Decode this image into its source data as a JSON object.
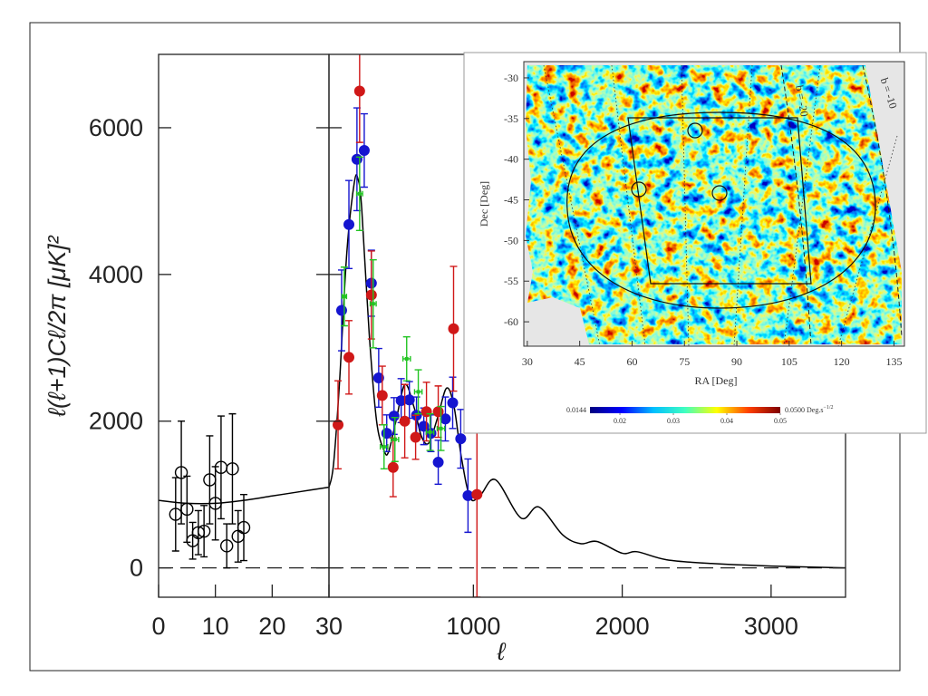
{
  "chart_data": [
    {
      "type": "scatter",
      "y_label": "ℓ(ℓ+1)Cℓ/2π  [μK]²",
      "xlim": [
        0,
        30
      ],
      "xticks": [
        0,
        10,
        20,
        30
      ],
      "ylim": [
        -400,
        7000
      ],
      "yticks": [
        0,
        2000,
        4000,
        6000
      ],
      "zero_line": "dashed",
      "series": [
        {
          "color": "#000000",
          "marker": "open-circle",
          "x": [
            3,
            4,
            5,
            6,
            7,
            8,
            9,
            10,
            11,
            12,
            13,
            14,
            15
          ],
          "values": [
            730,
            1300,
            800,
            370,
            480,
            500,
            1200,
            880,
            1370,
            300,
            1350,
            430,
            550
          ],
          "errors": [
            500,
            700,
            450,
            250,
            300,
            350,
            600,
            500,
            700,
            300,
            750,
            350,
            450
          ]
        }
      ],
      "model": {
        "color": "#000000",
        "x": [
          0,
          5,
          10,
          15,
          20,
          25,
          30
        ],
        "values": [
          920,
          880,
          880,
          920,
          980,
          1040,
          1100
        ]
      }
    },
    {
      "type": "scatter",
      "x_label": "ℓ",
      "xlim": [
        30,
        3500
      ],
      "xticks": [
        1000,
        2000,
        3000
      ],
      "ylim": [
        -400,
        7000
      ],
      "zero_line": "dashed",
      "series": [
        {
          "color": "#1515d0",
          "marker": "filled-circle",
          "x": [
            115,
            164,
            218,
            267,
            315,
            364,
            418,
            467,
            515,
            570,
            618,
            667,
            715,
            764,
            812,
            861,
            915,
            964
          ],
          "values": [
            3510,
            4680,
            5570,
            5690,
            3880,
            2590,
            1835,
            2070,
            2280,
            2290,
            2080,
            1930,
            1835,
            1440,
            2030,
            2250,
            1760,
            985
          ],
          "errors": [
            550,
            600,
            700,
            500,
            450,
            400,
            250,
            250,
            300,
            250,
            250,
            250,
            250,
            300,
            300,
            350,
            400,
            500
          ]
        },
        {
          "color": "#d01818",
          "marker": "filled-circle",
          "x": [
            91,
            164,
            236,
            315,
            388,
            461,
            539,
            612,
            685,
            764,
            867,
            1024
          ],
          "values": [
            1950,
            2870,
            6500,
            3720,
            2350,
            1370,
            2000,
            1780,
            2130,
            2130,
            3260,
            1000
          ],
          "errors": [
            600,
            500,
            700,
            600,
            400,
            400,
            500,
            300,
            400,
            350,
            850,
            1400
          ]
        },
        {
          "color": "#22c422",
          "marker": "cross",
          "x": [
            133,
            236,
            327,
            400,
            473,
            552,
            630,
            709,
            782
          ],
          "values": [
            3700,
            5100,
            3600,
            1650,
            1750,
            2850,
            2400,
            1850,
            1900
          ],
          "errors": [
            400,
            500,
            600,
            300,
            300,
            300,
            300,
            250,
            300
          ],
          "x_errors": [
            15,
            20,
            20,
            25,
            25,
            25,
            25,
            25,
            25
          ]
        }
      ],
      "model": {
        "color": "#000000",
        "x": [
          30,
          60,
          100,
          150,
          200,
          225,
          250,
          300,
          350,
          400,
          430,
          480,
          540,
          600,
          650,
          700,
          760,
          820,
          870,
          920,
          980,
          1050,
          1150,
          1320,
          1440,
          1600,
          1720,
          1830,
          2000,
          2100,
          2300,
          2600,
          3000,
          3500
        ],
        "values": [
          1100,
          1400,
          2500,
          4300,
          5250,
          5300,
          4900,
          3200,
          2000,
          1600,
          1580,
          2000,
          2500,
          2200,
          1800,
          1700,
          2050,
          2450,
          2200,
          1500,
          950,
          1000,
          1200,
          680,
          830,
          450,
          330,
          360,
          200,
          220,
          110,
          60,
          25,
          0
        ]
      }
    },
    {
      "type": "heatmap",
      "x_label": "RA [Deg]",
      "y_label": "Dec [Deg]",
      "xlim": [
        29,
        138
      ],
      "xticks": [
        30,
        45,
        60,
        75,
        90,
        105,
        120,
        135
      ],
      "ylim": [
        -63,
        -28
      ],
      "yticks": [
        -30,
        -35,
        -40,
        -45,
        -50,
        -55,
        -60
      ],
      "annotations": [
        "b = -20",
        "b = -10"
      ],
      "colorbar": {
        "lim": [
          0.0144,
          0.05
        ],
        "ticks": [
          0.02,
          0.03,
          0.04,
          0.05
        ],
        "end_labels": [
          0.0144,
          {
            "value": 0.05,
            "label": "0.0500"
          }
        ],
        "unit": "Deg.s",
        "unit_exponent": "−1/2",
        "colors": [
          "#00007f",
          "#0000ff",
          "#00bfff",
          "#40ffc0",
          "#ffff00",
          "#ff4000",
          "#7f0000"
        ]
      }
    }
  ]
}
